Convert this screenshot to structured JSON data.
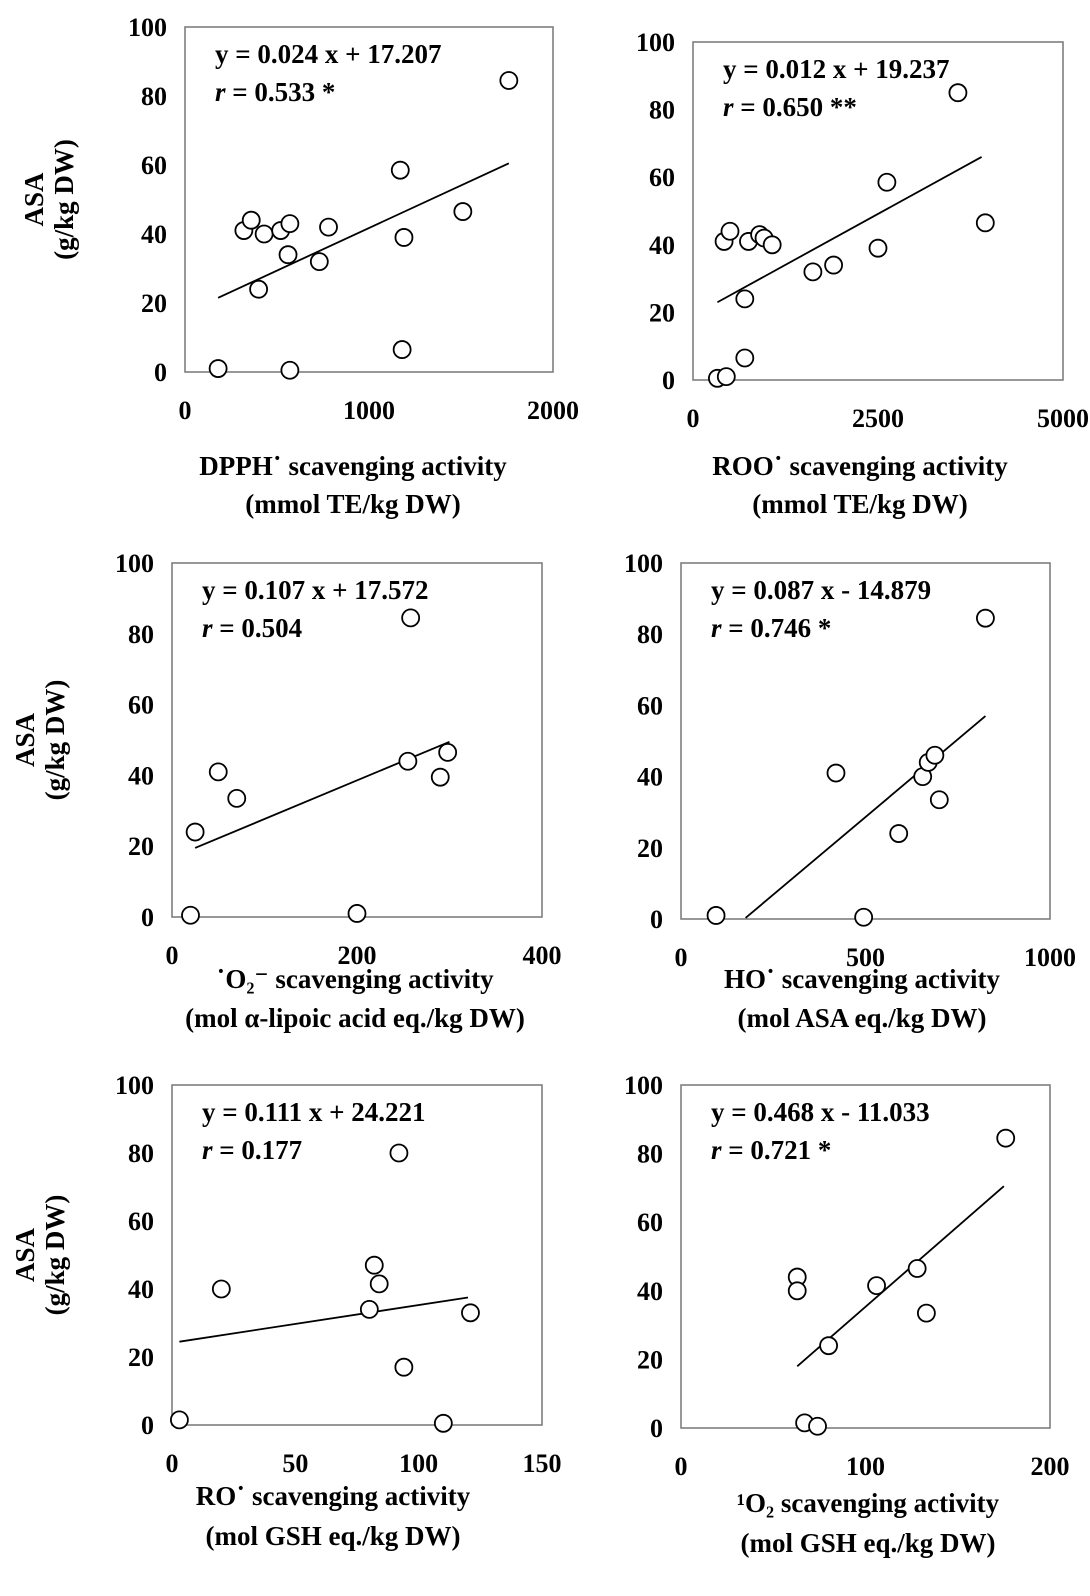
{
  "chart_data": [
    {
      "type": "scatter",
      "title": "",
      "xlabel": [
        "DPPH˙ scavenging activity",
        "(mmol TE/kg DW)"
      ],
      "ylabel": [
        "ASA",
        "(g/kg DW)"
      ],
      "xlim": [
        0,
        2000
      ],
      "ylim": [
        0,
        100
      ],
      "xticks": [
        "0",
        "1000",
        "2000"
      ],
      "yticks": [
        "0",
        "20",
        "40",
        "60",
        "80",
        "100"
      ],
      "equation": "y = 0.024 x + 17.207",
      "r_label": "r",
      "r_value": " = 0.533 *",
      "trend": {
        "x": [
          180,
          1760
        ],
        "y": [
          21.5,
          60.5
        ]
      },
      "points": [
        {
          "x": 180,
          "y": 1
        },
        {
          "x": 320,
          "y": 41
        },
        {
          "x": 360,
          "y": 44
        },
        {
          "x": 400,
          "y": 24
        },
        {
          "x": 430,
          "y": 40
        },
        {
          "x": 520,
          "y": 41
        },
        {
          "x": 560,
          "y": 34
        },
        {
          "x": 570,
          "y": 43
        },
        {
          "x": 570,
          "y": 0.5
        },
        {
          "x": 730,
          "y": 32
        },
        {
          "x": 780,
          "y": 42
        },
        {
          "x": 1170,
          "y": 58.5
        },
        {
          "x": 1190,
          "y": 39
        },
        {
          "x": 1180,
          "y": 6.5
        },
        {
          "x": 1510,
          "y": 46.5
        },
        {
          "x": 1760,
          "y": 84.5
        }
      ]
    },
    {
      "type": "scatter",
      "title": "",
      "xlabel": [
        "ROO˙ scavenging activity",
        "(mmol TE/kg DW)"
      ],
      "ylabel": [
        "",
        ""
      ],
      "xlim": [
        0,
        5000
      ],
      "ylim": [
        0,
        100
      ],
      "xticks": [
        "0",
        "2500",
        "5000"
      ],
      "yticks": [
        "0",
        "20",
        "40",
        "60",
        "80",
        "100"
      ],
      "equation": "y = 0.012 x + 19.237",
      "r_label": "r",
      "r_value": " = 0.650 **",
      "trend": {
        "x": [
          330,
          3900
        ],
        "y": [
          23,
          66
        ]
      },
      "points": [
        {
          "x": 330,
          "y": 0.5
        },
        {
          "x": 450,
          "y": 1
        },
        {
          "x": 420,
          "y": 41
        },
        {
          "x": 500,
          "y": 44
        },
        {
          "x": 700,
          "y": 24
        },
        {
          "x": 700,
          "y": 6.5
        },
        {
          "x": 750,
          "y": 41
        },
        {
          "x": 900,
          "y": 43
        },
        {
          "x": 960,
          "y": 42
        },
        {
          "x": 1070,
          "y": 40
        },
        {
          "x": 1620,
          "y": 32
        },
        {
          "x": 1900,
          "y": 34
        },
        {
          "x": 2500,
          "y": 39
        },
        {
          "x": 2620,
          "y": 58.5
        },
        {
          "x": 3580,
          "y": 85
        },
        {
          "x": 3950,
          "y": 46.5
        }
      ]
    },
    {
      "type": "scatter",
      "title": "",
      "xlabel": [
        "˙O₂⁻ scavenging activity",
        "(mol α-lipoic acid eq./kg DW)"
      ],
      "ylabel": [
        "ASA",
        "(g/kg DW)"
      ],
      "xlim": [
        0,
        400
      ],
      "ylim": [
        0,
        100
      ],
      "xticks": [
        "0",
        "200",
        "400"
      ],
      "yticks": [
        "0",
        "20",
        "40",
        "60",
        "80",
        "100"
      ],
      "equation": "y = 0.107 x + 17.572",
      "r_label": "r",
      "r_value": " = 0.504",
      "trend": {
        "x": [
          25,
          300
        ],
        "y": [
          19.5,
          49.5
        ]
      },
      "points": [
        {
          "x": 20,
          "y": 0.5
        },
        {
          "x": 25,
          "y": 24
        },
        {
          "x": 50,
          "y": 41
        },
        {
          "x": 70,
          "y": 33.5
        },
        {
          "x": 200,
          "y": 1
        },
        {
          "x": 255,
          "y": 44
        },
        {
          "x": 258,
          "y": 84.5
        },
        {
          "x": 290,
          "y": 39.5
        },
        {
          "x": 298,
          "y": 46.5
        }
      ]
    },
    {
      "type": "scatter",
      "title": "",
      "xlabel": [
        "HO˙ scavenging activity",
        "(mol ASA eq./kg DW)"
      ],
      "ylabel": [
        "",
        ""
      ],
      "xlim": [
        0,
        1000
      ],
      "ylim": [
        0,
        100
      ],
      "xticks": [
        "0",
        "500",
        "1000"
      ],
      "yticks": [
        "0",
        "20",
        "40",
        "60",
        "80",
        "100"
      ],
      "equation": "y = 0.087 x - 14.879",
      "r_label": "r",
      "r_value": " = 0.746 *",
      "trend": {
        "x": [
          175,
          825
        ],
        "y": [
          0.3,
          57
        ]
      },
      "points": [
        {
          "x": 95,
          "y": 1
        },
        {
          "x": 420,
          "y": 41
        },
        {
          "x": 495,
          "y": 0.5
        },
        {
          "x": 590,
          "y": 24
        },
        {
          "x": 655,
          "y": 40
        },
        {
          "x": 670,
          "y": 44
        },
        {
          "x": 688,
          "y": 46
        },
        {
          "x": 700,
          "y": 33.5
        },
        {
          "x": 825,
          "y": 84.5
        }
      ]
    },
    {
      "type": "scatter",
      "title": "",
      "xlabel": [
        "RO˙ scavenging activity",
        "(mol GSH eq./kg DW)"
      ],
      "ylabel": [
        "ASA",
        "(g/kg DW)"
      ],
      "xlim": [
        0,
        150
      ],
      "ylim": [
        0,
        100
      ],
      "xticks": [
        "0",
        "50",
        "100",
        "150"
      ],
      "yticks": [
        "0",
        "20",
        "40",
        "60",
        "80",
        "100"
      ],
      "equation": "y = 0.111 x + 24.221",
      "r_label": "r",
      "r_value": " = 0.177",
      "trend": {
        "x": [
          3,
          120
        ],
        "y": [
          24.5,
          37.5
        ]
      },
      "points": [
        {
          "x": 3,
          "y": 1.5
        },
        {
          "x": 20,
          "y": 40
        },
        {
          "x": 80,
          "y": 34
        },
        {
          "x": 82,
          "y": 47
        },
        {
          "x": 84,
          "y": 41.5
        },
        {
          "x": 92,
          "y": 80
        },
        {
          "x": 94,
          "y": 17
        },
        {
          "x": 110,
          "y": 0.5
        },
        {
          "x": 121,
          "y": 33
        }
      ]
    },
    {
      "type": "scatter",
      "title": "",
      "xlabel": [
        "¹O₂ scavenging activity",
        "(mol GSH eq./kg DW)"
      ],
      "ylabel": [
        "",
        ""
      ],
      "xlim": [
        0,
        200
      ],
      "ylim": [
        0,
        100
      ],
      "xticks": [
        "0",
        "100",
        "200"
      ],
      "yticks": [
        "0",
        "20",
        "40",
        "60",
        "80",
        "100"
      ],
      "equation": "y = 0.468 x - 11.033",
      "r_label": "r",
      "r_value": " = 0.721 *",
      "trend": {
        "x": [
          63,
          175
        ],
        "y": [
          18,
          70.5
        ]
      },
      "points": [
        {
          "x": 63,
          "y": 44
        },
        {
          "x": 63,
          "y": 40
        },
        {
          "x": 67,
          "y": 1.5
        },
        {
          "x": 74,
          "y": 0.5
        },
        {
          "x": 80,
          "y": 24
        },
        {
          "x": 106,
          "y": 41.5
        },
        {
          "x": 128,
          "y": 46.5
        },
        {
          "x": 133,
          "y": 33.5
        },
        {
          "x": 176,
          "y": 84.5
        }
      ]
    }
  ]
}
